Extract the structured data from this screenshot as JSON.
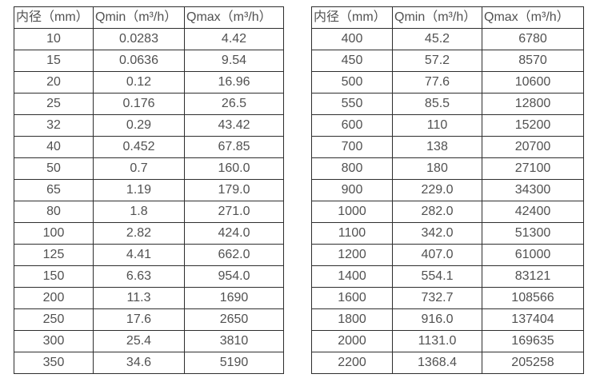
{
  "page": {
    "background_color": "#ffffff",
    "text_color": "#515151",
    "border_color": "#2e2e2e"
  },
  "tables": {
    "left": {
      "headers": [
        "内径（mm）",
        "Qmin（m³/h）",
        "Qmax（m³/h）"
      ],
      "rows": [
        [
          "10",
          "0.0283",
          "4.42"
        ],
        [
          "15",
          "0.0636",
          "9.54"
        ],
        [
          "20",
          "0.12",
          "16.96"
        ],
        [
          "25",
          "0.176",
          "26.5"
        ],
        [
          "32",
          "0.29",
          "43.42"
        ],
        [
          "40",
          "0.452",
          "67.85"
        ],
        [
          "50",
          "0.7",
          "160.0"
        ],
        [
          "65",
          "1.19",
          "179.0"
        ],
        [
          "80",
          "1.8",
          "271.0"
        ],
        [
          "100",
          "2.82",
          "424.0"
        ],
        [
          "125",
          "4.41",
          "662.0"
        ],
        [
          "150",
          "6.63",
          "954.0"
        ],
        [
          "200",
          "11.3",
          "1690"
        ],
        [
          "250",
          "17.6",
          "2650"
        ],
        [
          "300",
          "25.4",
          "3810"
        ],
        [
          "350",
          "34.6",
          "5190"
        ]
      ]
    },
    "right": {
      "headers": [
        "内径（mm）",
        "Qmin（m³/h）",
        "Qmax（m³/h）"
      ],
      "rows": [
        [
          "400",
          "45.2",
          "6780"
        ],
        [
          "450",
          "57.2",
          "8570"
        ],
        [
          "500",
          "77.6",
          "10600"
        ],
        [
          "550",
          "85.5",
          "12800"
        ],
        [
          "600",
          "110",
          "15200"
        ],
        [
          "700",
          "138",
          "20700"
        ],
        [
          "800",
          "180",
          "27100"
        ],
        [
          "900",
          "229.0",
          "34300"
        ],
        [
          "1000",
          "282.0",
          "42400"
        ],
        [
          "1100",
          "342.0",
          "51300"
        ],
        [
          "1200",
          "407.0",
          "61000"
        ],
        [
          "1400",
          "554.1",
          "83121"
        ],
        [
          "1600",
          "732.7",
          "108566"
        ],
        [
          "1800",
          "916.0",
          "137404"
        ],
        [
          "2000",
          "1131.0",
          "169635"
        ],
        [
          "2200",
          "1368.4",
          "205258"
        ]
      ]
    }
  }
}
